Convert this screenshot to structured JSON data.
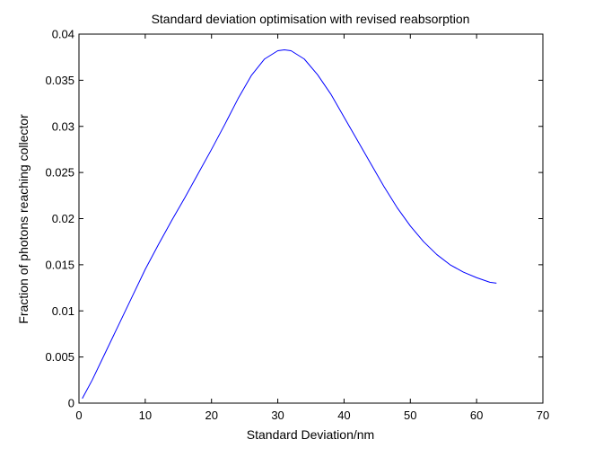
{
  "chart_data": {
    "type": "line",
    "title": "Standard deviation optimisation with revised reabsorption",
    "xlabel": "Standard Deviation/nm",
    "ylabel": "Fraction of photons reaching collector",
    "xlim": [
      0,
      70
    ],
    "ylim": [
      0,
      0.04
    ],
    "xticks": [
      "0",
      "10",
      "20",
      "30",
      "40",
      "50",
      "60",
      "70"
    ],
    "yticks": [
      "0",
      "0.005",
      "0.01",
      "0.015",
      "0.02",
      "0.025",
      "0.03",
      "0.035",
      "0.04"
    ],
    "grid": false,
    "box": true,
    "series": [
      {
        "color": "#0000ff",
        "x": [
          0.5,
          2,
          4,
          6,
          8,
          10,
          12,
          14,
          16,
          18,
          20,
          22,
          24,
          26,
          28,
          30,
          31,
          32,
          34,
          36,
          38,
          40,
          42,
          44,
          46,
          48,
          50,
          52,
          54,
          56,
          58,
          60,
          62,
          63
        ],
        "y": [
          0.0005,
          0.0025,
          0.0055,
          0.0085,
          0.0115,
          0.0145,
          0.0172,
          0.0198,
          0.0223,
          0.0249,
          0.0275,
          0.0302,
          0.033,
          0.0355,
          0.0373,
          0.0382,
          0.0383,
          0.0382,
          0.0373,
          0.0356,
          0.0335,
          0.031,
          0.0285,
          0.026,
          0.0235,
          0.0212,
          0.0192,
          0.0175,
          0.0161,
          0.015,
          0.0142,
          0.0136,
          0.0131,
          0.013
        ]
      }
    ]
  }
}
